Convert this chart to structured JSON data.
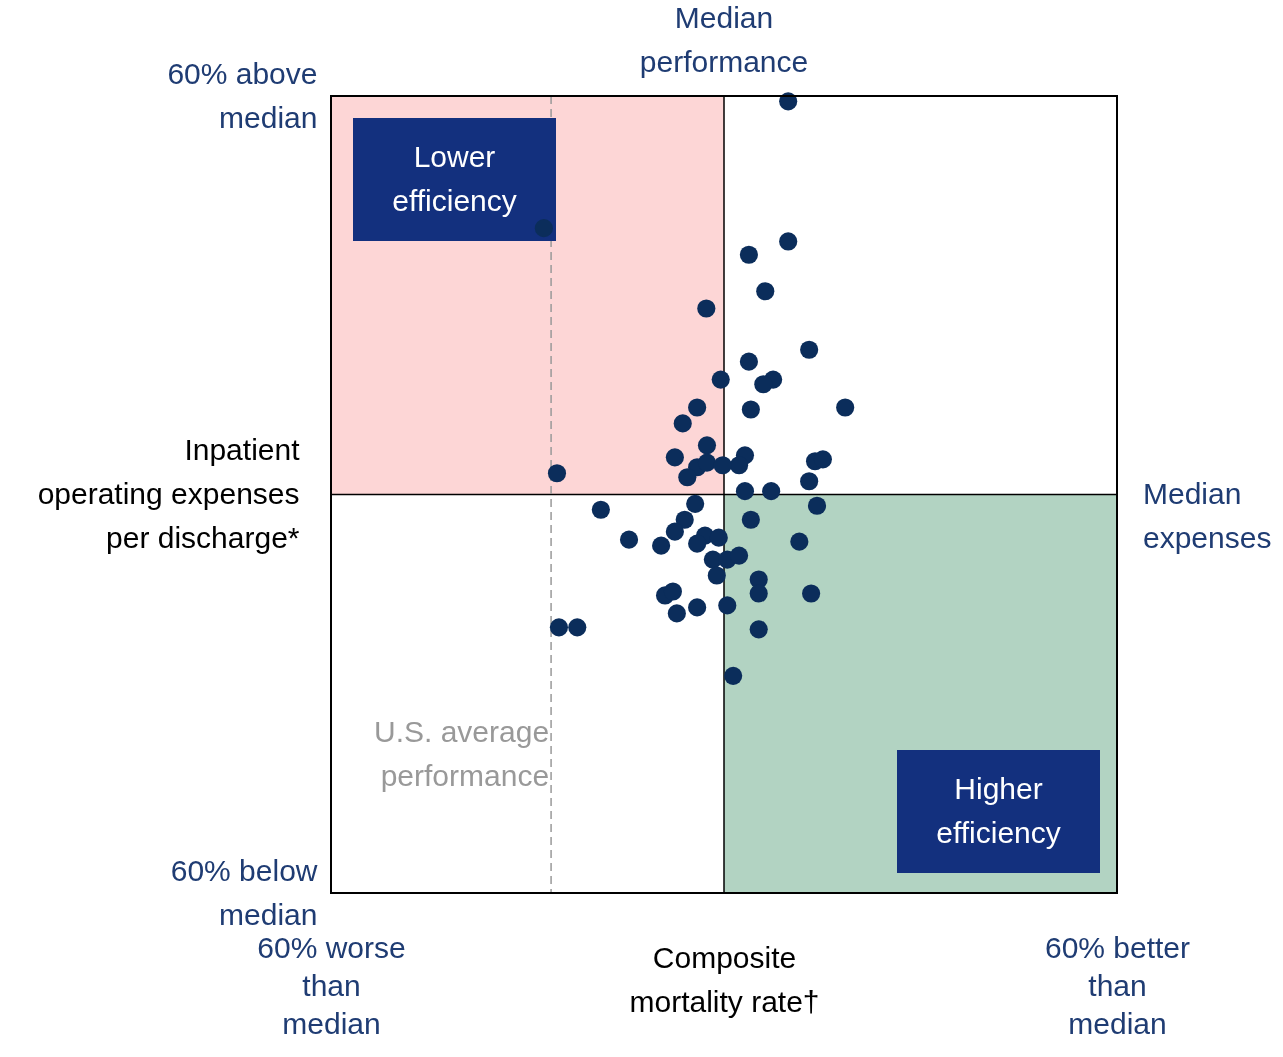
{
  "chart_data": {
    "type": "scatter",
    "xlabel": "Composite mortality rate†",
    "ylabel": "Inpatient operating expenses per discharge*",
    "xlim": [
      -60,
      60
    ],
    "ylim": [
      -60,
      60
    ],
    "xticks": [
      {
        "value": -60,
        "label": "60% worse than median"
      },
      {
        "value": 60,
        "label": "60% better than median"
      }
    ],
    "yticks": [
      {
        "value": 60,
        "label": "60% above median"
      },
      {
        "value": -60,
        "label": "60% below median"
      }
    ],
    "marker": "circle",
    "ref_lines": [
      {
        "axis": "x",
        "value": 0,
        "label": "Median performance",
        "color": "#000000",
        "line_style": "solid"
      },
      {
        "axis": "y",
        "value": 0,
        "label": "Median expenses",
        "color": "#000000",
        "line_style": "solid"
      },
      {
        "axis": "x",
        "value": -26.4,
        "label": "U.S. average performance",
        "color": "#999999",
        "line_style": "dashed"
      }
    ],
    "bands": [
      {
        "axis": "x",
        "from": -60,
        "to": 0,
        "color": "#fdd6d6",
        "label": "Lower efficiency"
      },
      {
        "axis": "x",
        "from": 0,
        "to": 60,
        "color": "#b2d3c2",
        "label": "Higher efficiency"
      }
    ],
    "series": [
      {
        "color": "#0b2d5b",
        "x": [
          9.8,
          -27.5,
          9.8,
          3.8,
          6.3,
          -2.7,
          13.0,
          3.8,
          -0.5,
          7.5,
          6.0,
          -4.1,
          4.1,
          18.5,
          -6.3,
          -2.6,
          -7.5,
          3.2,
          -4.1,
          -2.6,
          2.3,
          -0.2,
          -5.6,
          -25.5,
          13.9,
          15.1,
          13.0,
          3.2,
          7.2,
          14.2,
          -4.4,
          -18.8,
          -6.0,
          4.1,
          -7.5,
          -14.5,
          -9.6,
          -2.9,
          -0.8,
          -4.1,
          11.5,
          -1.7,
          0.5,
          2.3,
          -1.1,
          5.3,
          -9.0,
          -7.8,
          5.3,
          13.3,
          -7.2,
          -4.1,
          0.5,
          -25.2,
          -22.4,
          5.3,
          1.4
        ],
        "values": [
          59.2,
          40.1,
          38.1,
          36.1,
          30.6,
          28.0,
          21.8,
          20.0,
          17.3,
          17.3,
          16.6,
          13.1,
          12.8,
          13.1,
          10.7,
          7.4,
          5.6,
          5.9,
          4.1,
          4.8,
          4.4,
          4.4,
          2.6,
          3.2,
          5.0,
          5.3,
          2.0,
          0.5,
          0.5,
          -1.7,
          -1.4,
          -2.3,
          -3.8,
          -3.8,
          -5.6,
          -6.8,
          -7.7,
          -6.2,
          -6.5,
          -7.4,
          -7.1,
          -9.8,
          -9.8,
          -9.2,
          -12.2,
          -12.8,
          -15.2,
          -14.6,
          -14.9,
          -14.9,
          -17.9,
          -17.0,
          -16.7,
          -20.0,
          -20.0,
          -20.3,
          -27.3
        ]
      }
    ]
  }
}
